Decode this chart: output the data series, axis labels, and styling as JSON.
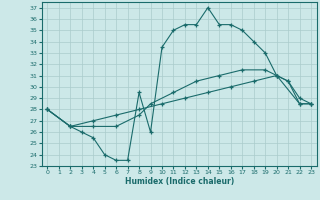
{
  "xlabel": "Humidex (Indice chaleur)",
  "xlim": [
    -0.5,
    23.5
  ],
  "ylim": [
    23,
    37.5
  ],
  "xticks": [
    0,
    1,
    2,
    3,
    4,
    5,
    6,
    7,
    8,
    9,
    10,
    11,
    12,
    13,
    14,
    15,
    16,
    17,
    18,
    19,
    20,
    21,
    22,
    23
  ],
  "yticks": [
    23,
    24,
    25,
    26,
    27,
    28,
    29,
    30,
    31,
    32,
    33,
    34,
    35,
    36,
    37
  ],
  "bg_color": "#cce8e8",
  "line_color": "#1a6b6b",
  "grid_color": "#aacccc",
  "series1": [
    [
      0,
      28.0
    ],
    [
      2,
      26.5
    ],
    [
      3,
      26.0
    ],
    [
      4,
      25.5
    ],
    [
      5,
      24.0
    ],
    [
      6,
      23.5
    ],
    [
      7,
      23.5
    ],
    [
      8,
      29.5
    ],
    [
      9,
      26.0
    ],
    [
      10,
      33.5
    ],
    [
      11,
      35.0
    ],
    [
      12,
      35.5
    ],
    [
      13,
      35.5
    ],
    [
      14,
      37.0
    ],
    [
      15,
      35.5
    ],
    [
      16,
      35.5
    ],
    [
      17,
      35.0
    ],
    [
      18,
      34.0
    ],
    [
      19,
      33.0
    ],
    [
      20,
      31.0
    ],
    [
      21,
      30.5
    ],
    [
      22,
      28.5
    ],
    [
      23,
      28.5
    ]
  ],
  "series2": [
    [
      0,
      28.0
    ],
    [
      2,
      26.5
    ],
    [
      4,
      26.5
    ],
    [
      6,
      26.5
    ],
    [
      8,
      27.5
    ],
    [
      9,
      28.5
    ],
    [
      11,
      29.5
    ],
    [
      13,
      30.5
    ],
    [
      15,
      31.0
    ],
    [
      17,
      31.5
    ],
    [
      19,
      31.5
    ],
    [
      20,
      31.0
    ],
    [
      21,
      30.5
    ],
    [
      22,
      29.0
    ],
    [
      23,
      28.5
    ]
  ],
  "series3": [
    [
      0,
      28.0
    ],
    [
      2,
      26.5
    ],
    [
      4,
      27.0
    ],
    [
      6,
      27.5
    ],
    [
      8,
      28.0
    ],
    [
      10,
      28.5
    ],
    [
      12,
      29.0
    ],
    [
      14,
      29.5
    ],
    [
      16,
      30.0
    ],
    [
      18,
      30.5
    ],
    [
      20,
      31.0
    ],
    [
      22,
      28.5
    ],
    [
      23,
      28.5
    ]
  ]
}
